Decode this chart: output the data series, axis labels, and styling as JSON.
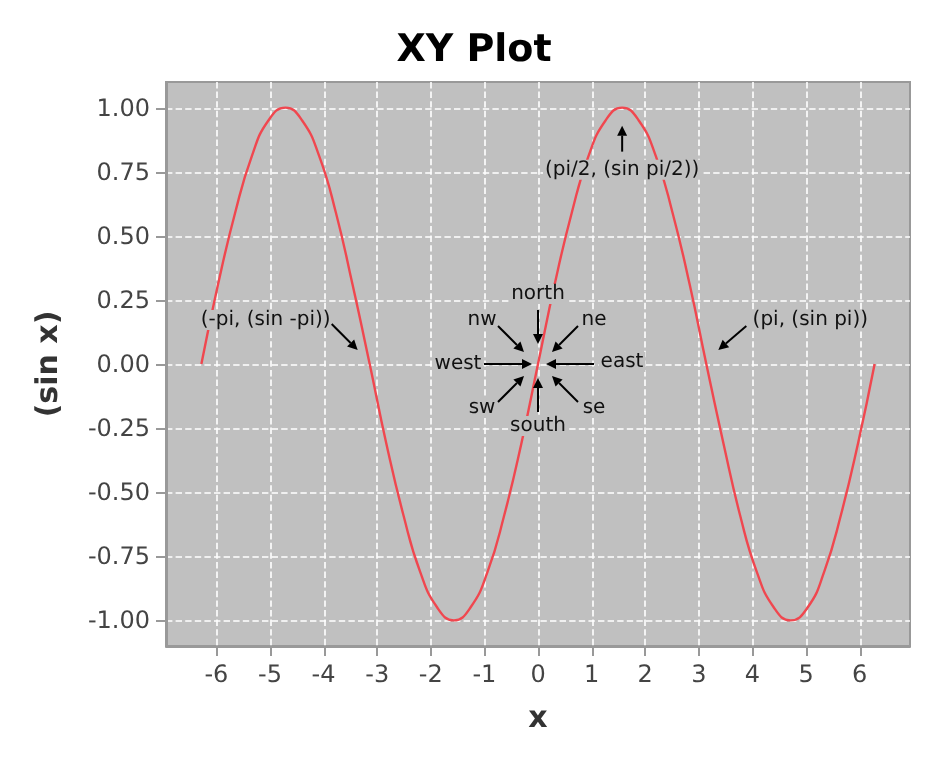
{
  "chart_data": {
    "type": "line",
    "title": "XY Plot",
    "xlabel": "x",
    "ylabel": "(sin x)",
    "x": [
      -6.28,
      -5.97,
      -5.65,
      -5.34,
      -5.03,
      -4.71,
      -4.4,
      -4.08,
      -3.77,
      -3.46,
      -3.14,
      -2.83,
      -2.51,
      -2.2,
      -1.88,
      -1.57,
      -1.26,
      -0.94,
      -0.63,
      -0.31,
      0,
      0.31,
      0.63,
      0.94,
      1.26,
      1.57,
      1.88,
      2.2,
      2.51,
      2.83,
      3.14,
      3.46,
      3.77,
      4.08,
      4.4,
      4.71,
      5.03,
      5.34,
      5.65,
      5.97,
      6.28
    ],
    "series": [
      {
        "color": "#f0474f",
        "values": [
          0,
          0.31,
          0.59,
          0.81,
          0.95,
          1,
          0.95,
          0.81,
          0.59,
          0.31,
          0,
          -0.31,
          -0.59,
          -0.81,
          -0.95,
          -1,
          -0.95,
          -0.81,
          -0.59,
          -0.31,
          0,
          0.31,
          0.59,
          0.81,
          0.95,
          1,
          0.95,
          0.81,
          0.59,
          0.31,
          0,
          -0.31,
          -0.59,
          -0.81,
          -0.95,
          -1,
          -0.95,
          -0.81,
          -0.59,
          -0.31,
          0
        ]
      }
    ],
    "xlim": [
      -6.94,
      6.94
    ],
    "ylim": [
      -1.1,
      1.1
    ],
    "xticks": [
      -6,
      -5,
      -4,
      -3,
      -2,
      -1,
      0,
      1,
      2,
      3,
      4,
      5,
      6
    ],
    "yticks": [
      {
        "value": -1,
        "label": "-1.00"
      },
      {
        "value": -0.75,
        "label": "-0.75"
      },
      {
        "value": -0.5,
        "label": "-0.50"
      },
      {
        "value": -0.25,
        "label": "-0.25"
      },
      {
        "value": 0,
        "label": "0.00"
      },
      {
        "value": 0.25,
        "label": "0.25"
      },
      {
        "value": 0.5,
        "label": "0.50"
      },
      {
        "value": 0.75,
        "label": "0.75"
      },
      {
        "value": 1,
        "label": "1.00"
      }
    ],
    "grid": true,
    "marker": "none",
    "line_style": "solid",
    "annotations": [
      {
        "text": "(pi/2, (sin pi/2))",
        "x": 1.57,
        "y": 1
      },
      {
        "text": "(-pi, (sin -pi))",
        "x": -3.14,
        "y": 0
      },
      {
        "text": "(pi, (sin pi))",
        "x": 3.14,
        "y": 0
      },
      {
        "text": "north",
        "x": 0,
        "y": 0
      },
      {
        "text": "ne",
        "x": 0,
        "y": 0
      },
      {
        "text": "east",
        "x": 0,
        "y": 0
      },
      {
        "text": "se",
        "x": 0,
        "y": 0
      },
      {
        "text": "south",
        "x": 0,
        "y": 0
      },
      {
        "text": "sw",
        "x": 0,
        "y": 0
      },
      {
        "text": "west",
        "x": 0,
        "y": 0
      },
      {
        "text": "nw",
        "x": 0,
        "y": 0
      }
    ]
  }
}
